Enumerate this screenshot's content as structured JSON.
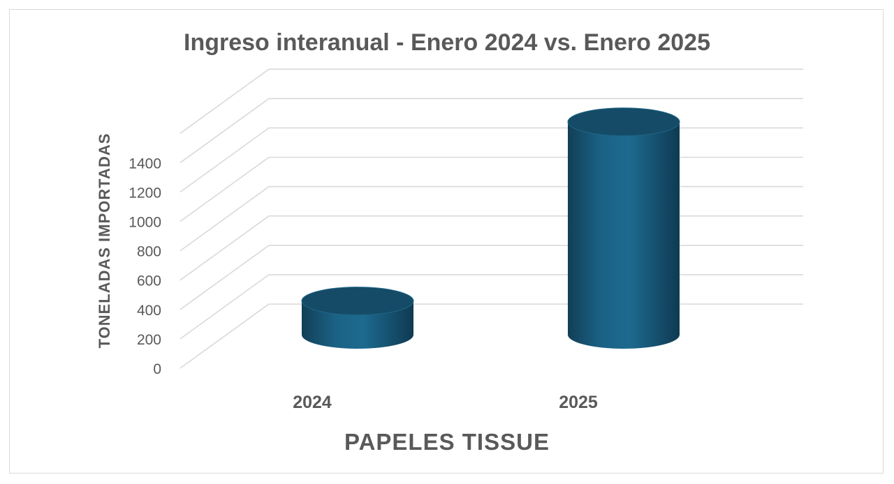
{
  "chart_data": {
    "type": "bar",
    "title": "Ingreso interanual - Enero 2024 vs. Enero 2025",
    "xlabel": "PAPELES TISSUE",
    "ylabel": "TONELADAS IMPORTADAS",
    "categories": [
      "2024",
      "2025"
    ],
    "values": [
      230,
      1450
    ],
    "ylim": [
      0,
      1400
    ],
    "yticks": [
      0,
      200,
      400,
      600,
      800,
      1000,
      1200,
      1400
    ],
    "grid": true,
    "legend": "none",
    "shape": "3d-cylinder",
    "colors": {
      "bar": "#1a5f80",
      "bar_top": "#154b66",
      "grid": "#d9d9d9",
      "text": "#595959"
    }
  }
}
